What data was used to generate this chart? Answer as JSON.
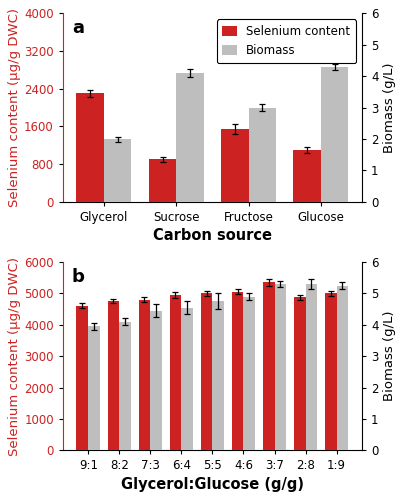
{
  "panel_a": {
    "categories": [
      "Glycerol",
      "Sucrose",
      "Fructose",
      "Glucose"
    ],
    "selenium": [
      2300,
      900,
      1550,
      1100
    ],
    "selenium_err": [
      80,
      60,
      100,
      70
    ],
    "biomass": [
      2.0,
      4.1,
      3.0,
      4.3
    ],
    "biomass_err": [
      0.08,
      0.12,
      0.12,
      0.1
    ],
    "se_ylim": [
      0,
      4000
    ],
    "se_yticks": [
      0,
      800,
      1600,
      2400,
      3200,
      4000
    ],
    "bio_ylim": [
      0,
      6
    ],
    "bio_yticks": [
      0,
      1,
      2,
      3,
      4,
      5,
      6
    ],
    "xlabel": "Carbon source",
    "ylabel_left": "Selenium content (μg/g DWC)",
    "ylabel_right": "Biomass (g/L)",
    "label": "a"
  },
  "panel_b": {
    "categories": [
      "9:1",
      "8:2",
      "7:3",
      "6:4",
      "5:5",
      "4:6",
      "3:7",
      "2:8",
      "1:9"
    ],
    "selenium": [
      4600,
      4750,
      4800,
      4950,
      5000,
      5050,
      5350,
      4880,
      5000
    ],
    "selenium_err": [
      80,
      70,
      80,
      90,
      80,
      80,
      100,
      80,
      80
    ],
    "biomass": [
      3.95,
      4.1,
      4.45,
      4.55,
      4.75,
      4.9,
      5.3,
      5.3,
      5.25
    ],
    "biomass_err": [
      0.1,
      0.12,
      0.2,
      0.2,
      0.25,
      0.1,
      0.1,
      0.15,
      0.12
    ],
    "se_ylim": [
      0,
      6000
    ],
    "se_yticks": [
      0,
      1000,
      2000,
      3000,
      4000,
      5000,
      6000
    ],
    "bio_ylim": [
      0,
      6
    ],
    "bio_yticks": [
      0,
      1,
      2,
      3,
      4,
      5,
      6
    ],
    "xlabel": "Glycerol:Glucose (g/g)",
    "ylabel_left": "Selenium content (μg/g DWC)",
    "ylabel_right": "Biomass (g/L)",
    "label": "b"
  },
  "bar_color_se": "#CC2222",
  "bar_color_bio": "#BEBEBE",
  "bar_width": 0.38,
  "legend_labels": [
    "Selenium content",
    "Biomass"
  ],
  "tick_fontsize": 8.5,
  "axis_label_fontsize": 9.5,
  "xlabel_fontsize": 10.5,
  "legend_fontsize": 8.5,
  "panel_label_fontsize": 13
}
